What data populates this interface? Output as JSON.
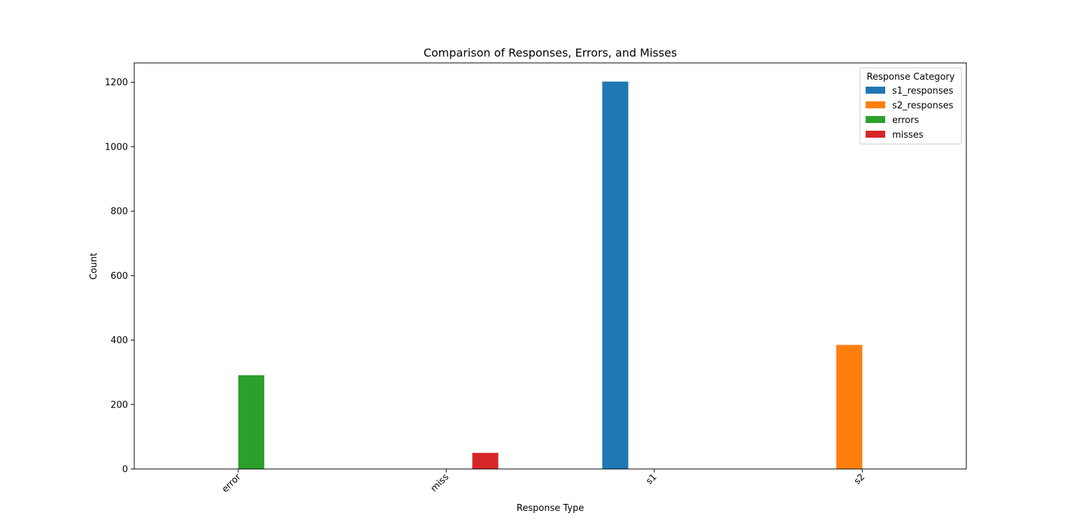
{
  "chart_data": {
    "type": "bar",
    "title": "Comparison of Responses, Errors, and Misses",
    "xlabel": "Response Type",
    "ylabel": "Count",
    "categories": [
      "error",
      "miss",
      "s1",
      "s2"
    ],
    "ylim": [
      0,
      1260
    ],
    "yticks": [
      0,
      200,
      400,
      600,
      800,
      1000,
      1200
    ],
    "series": [
      {
        "name": "s1_responses",
        "color": "#1f77b4",
        "values": [
          0,
          0,
          1202,
          0
        ]
      },
      {
        "name": "s2_responses",
        "color": "#ff7f0e",
        "values": [
          0,
          0,
          0,
          385
        ]
      },
      {
        "name": "errors",
        "color": "#2ca02c",
        "values": [
          291,
          0,
          0,
          0
        ]
      },
      {
        "name": "misses",
        "color": "#d62728",
        "values": [
          0,
          50,
          0,
          0
        ]
      }
    ],
    "legend": {
      "title": "Response Category",
      "placement": "top-right"
    },
    "grid": false
  }
}
